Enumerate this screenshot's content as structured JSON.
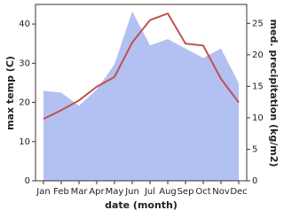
{
  "chart_data": {
    "type": "area-line",
    "x_label": "date (month)",
    "y_label": "max temp (C)",
    "y2_label": "med. precipitation (kg/m2)",
    "categories": [
      "Jan",
      "Feb",
      "Mar",
      "Apr",
      "May",
      "Jun",
      "Jul",
      "Aug",
      "Sep",
      "Oct",
      "Nov",
      "Dec"
    ],
    "series": [
      {
        "name": "med. precipitation",
        "kind": "area",
        "axis": "y2",
        "color": "#b3c0f2",
        "values": [
          14.3,
          14,
          11.9,
          14.5,
          18.5,
          26.9,
          21.5,
          22.5,
          21,
          19.5,
          21,
          15.5
        ]
      },
      {
        "name": "max temp",
        "kind": "line",
        "color": "#c0504d",
        "values": [
          15.8,
          18,
          20.5,
          24,
          26.5,
          35.3,
          41,
          42.7,
          35,
          34.5,
          26,
          20
        ]
      }
    ],
    "ylim": [
      0,
      45
    ],
    "yticks": [
      0,
      10,
      20,
      30,
      40
    ],
    "y2lim": [
      0,
      28
    ],
    "y2ticks": [
      0,
      5,
      10,
      15,
      20,
      25
    ]
  }
}
